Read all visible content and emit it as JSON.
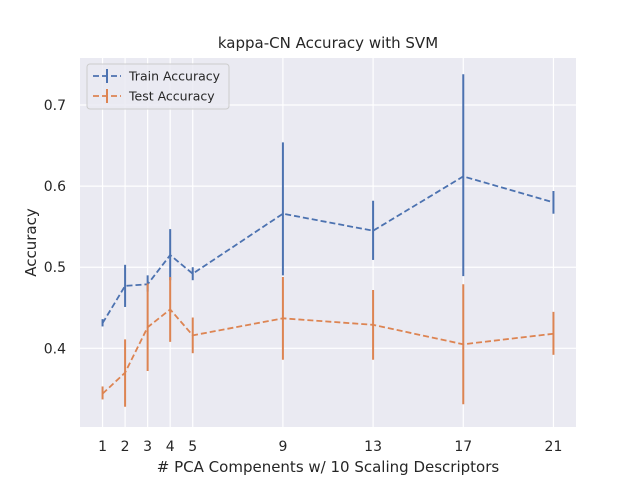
{
  "chart_data": {
    "type": "line",
    "title": "kappa-CN Accuracy with SVM",
    "xlabel": "# PCA Compenents w/ 10 Scaling Descriptors",
    "ylabel": "Accuracy",
    "x": [
      1,
      2,
      3,
      4,
      5,
      9,
      13,
      17,
      21
    ],
    "xticks": [
      1,
      2,
      3,
      4,
      5,
      9,
      13,
      17,
      21
    ],
    "yticks": [
      0.4,
      0.5,
      0.6,
      0.7
    ],
    "xlim": [
      0,
      22
    ],
    "ylim": [
      0.303,
      0.758
    ],
    "grid": true,
    "legend_position": "top-left",
    "series": [
      {
        "name": "Train Accuracy",
        "color": "#4c72b0",
        "values": [
          0.431,
          0.477,
          0.479,
          0.515,
          0.492,
          0.566,
          0.545,
          0.612,
          0.58
        ],
        "err_low": [
          0.427,
          0.451,
          0.47,
          0.484,
          0.484,
          0.49,
          0.509,
          0.489,
          0.566
        ],
        "err_high": [
          0.436,
          0.503,
          0.49,
          0.547,
          0.5,
          0.654,
          0.582,
          0.738,
          0.594
        ]
      },
      {
        "name": "Test Accuracy",
        "color": "#dd8452",
        "values": [
          0.344,
          0.37,
          0.426,
          0.448,
          0.416,
          0.437,
          0.429,
          0.405,
          0.418
        ],
        "err_low": [
          0.337,
          0.328,
          0.372,
          0.408,
          0.394,
          0.386,
          0.386,
          0.331,
          0.392
        ],
        "err_high": [
          0.353,
          0.411,
          0.48,
          0.488,
          0.438,
          0.488,
          0.472,
          0.479,
          0.445
        ]
      }
    ]
  }
}
